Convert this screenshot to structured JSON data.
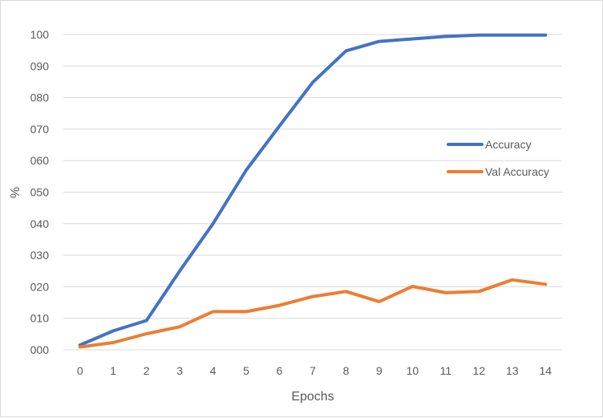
{
  "chart_data": {
    "type": "line",
    "title": "",
    "xlabel": "Epochs",
    "ylabel": "%",
    "x": [
      0,
      1,
      2,
      3,
      4,
      5,
      6,
      7,
      8,
      9,
      10,
      11,
      12,
      13,
      14
    ],
    "x_tick_labels": [
      "0",
      "1",
      "2",
      "3",
      "4",
      "5",
      "6",
      "7",
      "8",
      "9",
      "10",
      "11",
      "12",
      "13",
      "14"
    ],
    "ylim": [
      0,
      100
    ],
    "y_ticks": [
      0,
      10,
      20,
      30,
      40,
      50,
      60,
      70,
      80,
      90,
      100
    ],
    "y_tick_labels": [
      "000",
      "010",
      "020",
      "030",
      "040",
      "050",
      "060",
      "070",
      "080",
      "090",
      "100"
    ],
    "grid": true,
    "legend_position": "right",
    "series": [
      {
        "name": "Accuracy",
        "color": "#4472C4",
        "values": [
          1.5,
          6,
          9.3,
          25,
          40,
          57,
          71,
          84.8,
          94.8,
          97.8,
          98.6,
          99.4,
          99.8,
          99.8,
          99.8
        ]
      },
      {
        "name": "Val Accuracy",
        "color": "#ED7D31",
        "values": [
          0.9,
          2.3,
          5.1,
          7.3,
          12.1,
          12.1,
          14.1,
          16.9,
          18.5,
          15.3,
          20.1,
          18.1,
          18.5,
          22.2,
          20.8
        ]
      }
    ]
  }
}
